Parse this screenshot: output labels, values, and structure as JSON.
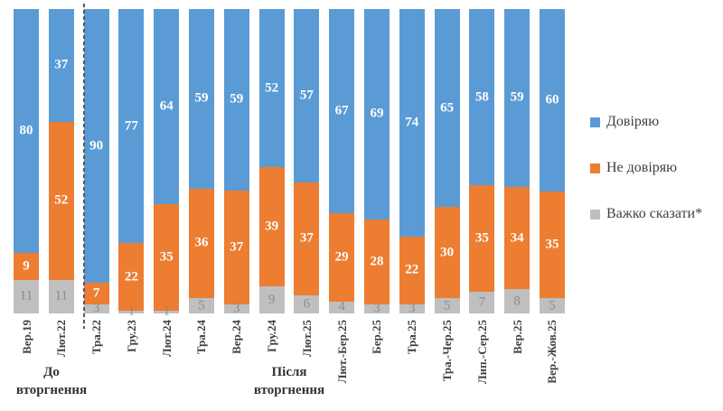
{
  "chart_data": {
    "type": "bar",
    "stacked": true,
    "orientation": "vertical",
    "title": "",
    "xlabel": "",
    "ylabel": "",
    "ylim": [
      0,
      100
    ],
    "grid": false,
    "legend_position": "right",
    "categories": [
      "Вер.19",
      "Лют.22",
      "Тра.22",
      "Гру.23",
      "Лют.24",
      "Тра.24",
      "Вер.24",
      "Гру.24",
      "Лют.25",
      "Лют.-Бер.25",
      "Бер.25",
      "Тра.25",
      "Тра.-Чер.25",
      "Лип.-Сер.25",
      "Вер.25",
      "Вер.-Жов.25"
    ],
    "series": [
      {
        "name": "Довіряю",
        "key": "trust",
        "color": "#5B9BD5",
        "label_color": "#FFFFFF",
        "values": [
          80,
          37,
          90,
          77,
          64,
          59,
          59,
          52,
          57,
          67,
          69,
          74,
          65,
          58,
          59,
          60
        ]
      },
      {
        "name": "Не довіряю",
        "key": "distrust",
        "color": "#ED7D31",
        "label_color": "#FFFFFF",
        "values": [
          9,
          52,
          7,
          22,
          35,
          36,
          37,
          39,
          37,
          29,
          28,
          22,
          30,
          35,
          34,
          35
        ]
      },
      {
        "name": "Важко сказати*",
        "key": "hard-to-say",
        "color": "#BFBFBF",
        "label_color": "#8C8C8C",
        "values": [
          11,
          11,
          3,
          1,
          1,
          5,
          3,
          9,
          6,
          4,
          3,
          3,
          5,
          7,
          8,
          5
        ]
      }
    ],
    "separator_after_category_index": 1,
    "groups": [
      {
        "label": "До вторгнення",
        "line1": "До",
        "line2": "вторгнення"
      },
      {
        "label": "Після вторгнення",
        "line1": "Після",
        "line2": "вторгнення"
      }
    ]
  }
}
